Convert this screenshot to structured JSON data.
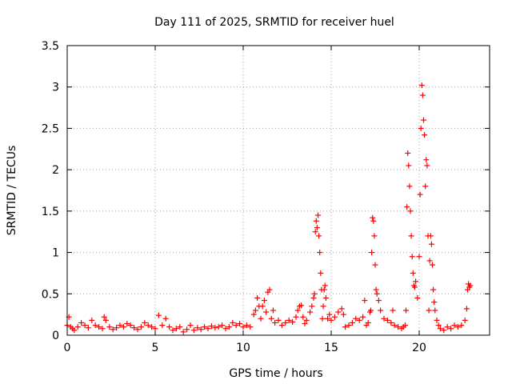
{
  "chart_data": {
    "type": "scatter",
    "title": "Day 111 of 2025, SRMTID for receiver huel",
    "xlabel": "GPS time / hours",
    "ylabel": "SRMTID / TECUs",
    "xlim": [
      0,
      24
    ],
    "ylim": [
      0,
      3.5
    ],
    "x_ticks": [
      0,
      5,
      10,
      15,
      20
    ],
    "x_tick_labels": [
      "0",
      "5",
      "10",
      "15",
      "20"
    ],
    "y_ticks": [
      0,
      0.5,
      1,
      1.5,
      2,
      2.5,
      3,
      3.5
    ],
    "y_tick_labels": [
      "0",
      "0.5",
      "1",
      "1.5",
      "2",
      "2.5",
      "3",
      "3.5"
    ],
    "grid": true,
    "marker": "+",
    "color": "#ff0000",
    "series": [
      {
        "name": "SRMTID",
        "x": [
          0.0,
          0.1,
          0.2,
          0.3,
          0.4,
          0.6,
          0.8,
          1.0,
          1.2,
          1.4,
          1.6,
          1.8,
          2.0,
          2.1,
          2.2,
          2.4,
          2.6,
          2.8,
          3.0,
          3.2,
          3.4,
          3.6,
          3.8,
          4.0,
          4.2,
          4.4,
          4.6,
          4.8,
          5.0,
          5.2,
          5.4,
          5.6,
          5.8,
          6.0,
          6.2,
          6.4,
          6.6,
          6.8,
          7.0,
          7.2,
          7.4,
          7.6,
          7.8,
          8.0,
          8.2,
          8.4,
          8.6,
          8.8,
          9.0,
          9.2,
          9.4,
          9.6,
          9.8,
          10.0,
          10.2,
          10.4,
          10.6,
          10.7,
          10.8,
          10.9,
          11.0,
          11.1,
          11.2,
          11.3,
          11.4,
          11.5,
          11.6,
          11.7,
          11.8,
          12.0,
          12.2,
          12.4,
          12.6,
          12.8,
          13.0,
          13.1,
          13.2,
          13.3,
          13.4,
          13.5,
          13.6,
          13.8,
          13.9,
          14.0,
          14.05,
          14.1,
          14.15,
          14.2,
          14.25,
          14.3,
          14.35,
          14.4,
          14.45,
          14.5,
          14.55,
          14.6,
          14.65,
          14.7,
          14.8,
          14.9,
          15.0,
          15.2,
          15.4,
          15.6,
          15.7,
          15.8,
          16.0,
          16.2,
          16.4,
          16.6,
          16.8,
          16.9,
          17.0,
          17.1,
          17.2,
          17.25,
          17.3,
          17.35,
          17.4,
          17.45,
          17.5,
          17.55,
          17.6,
          17.7,
          17.8,
          18.0,
          18.2,
          18.4,
          18.5,
          18.6,
          18.8,
          19.0,
          19.1,
          19.2,
          19.25,
          19.3,
          19.35,
          19.4,
          19.45,
          19.5,
          19.55,
          19.6,
          19.65,
          19.7,
          19.75,
          19.8,
          19.9,
          20.0,
          20.05,
          20.1,
          20.15,
          20.2,
          20.25,
          20.3,
          20.35,
          20.4,
          20.45,
          20.5,
          20.55,
          20.6,
          20.65,
          20.7,
          20.75,
          20.8,
          20.85,
          20.9,
          21.0,
          21.1,
          21.2,
          21.4,
          21.6,
          21.8,
          22.0,
          22.2,
          22.4,
          22.6,
          22.7,
          22.75,
          22.8,
          22.85,
          22.9
        ],
        "y": [
          0.12,
          0.22,
          0.1,
          0.08,
          0.06,
          0.1,
          0.15,
          0.12,
          0.09,
          0.18,
          0.12,
          0.1,
          0.08,
          0.22,
          0.18,
          0.1,
          0.07,
          0.09,
          0.12,
          0.1,
          0.14,
          0.12,
          0.09,
          0.07,
          0.1,
          0.15,
          0.12,
          0.1,
          0.08,
          0.24,
          0.12,
          0.2,
          0.1,
          0.06,
          0.08,
          0.1,
          0.04,
          0.07,
          0.12,
          0.06,
          0.09,
          0.07,
          0.1,
          0.08,
          0.11,
          0.09,
          0.1,
          0.12,
          0.08,
          0.1,
          0.15,
          0.12,
          0.14,
          0.1,
          0.12,
          0.1,
          0.25,
          0.3,
          0.45,
          0.35,
          0.2,
          0.35,
          0.42,
          0.28,
          0.52,
          0.55,
          0.2,
          0.3,
          0.15,
          0.18,
          0.12,
          0.15,
          0.18,
          0.16,
          0.22,
          0.3,
          0.35,
          0.36,
          0.22,
          0.14,
          0.18,
          0.28,
          0.35,
          0.45,
          0.5,
          1.25,
          1.38,
          1.3,
          1.45,
          1.2,
          1.0,
          0.75,
          0.55,
          0.2,
          0.35,
          0.55,
          0.6,
          0.45,
          0.2,
          0.25,
          0.18,
          0.22,
          0.28,
          0.32,
          0.25,
          0.1,
          0.12,
          0.15,
          0.2,
          0.18,
          0.22,
          0.42,
          0.12,
          0.15,
          0.28,
          0.3,
          1.0,
          1.42,
          1.38,
          1.2,
          0.85,
          0.55,
          0.5,
          0.42,
          0.3,
          0.2,
          0.18,
          0.15,
          0.3,
          0.12,
          0.1,
          0.08,
          0.1,
          0.12,
          0.3,
          1.55,
          2.2,
          2.05,
          1.8,
          1.5,
          1.2,
          0.95,
          0.75,
          0.6,
          0.58,
          0.65,
          0.45,
          0.95,
          1.7,
          2.5,
          3.02,
          2.9,
          2.6,
          2.42,
          1.8,
          2.12,
          2.05,
          1.2,
          0.3,
          0.9,
          1.2,
          1.1,
          0.85,
          0.55,
          0.4,
          0.3,
          0.18,
          0.12,
          0.08,
          0.06,
          0.1,
          0.08,
          0.12,
          0.1,
          0.12,
          0.18,
          0.32,
          0.55,
          0.62,
          0.58,
          0.6
        ]
      }
    ]
  }
}
